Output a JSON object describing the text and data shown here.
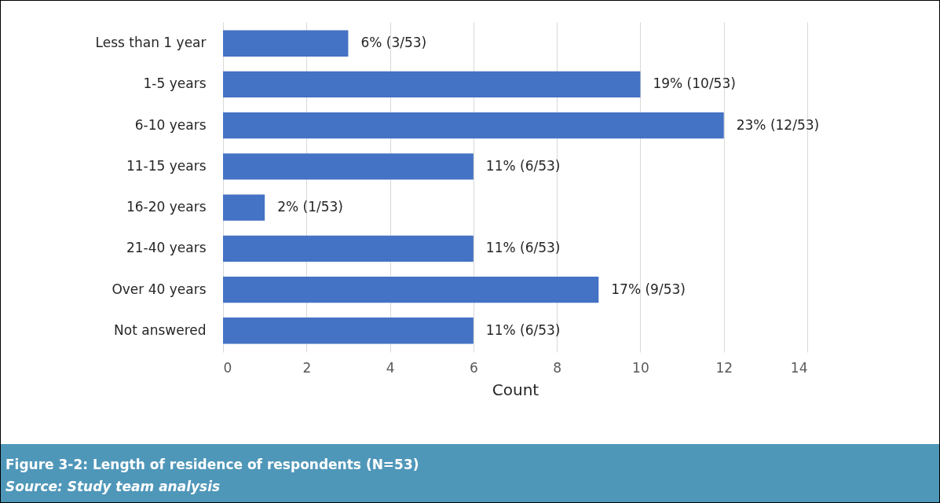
{
  "chart_data": {
    "type": "bar",
    "orientation": "horizontal",
    "title": "Figure 3-2: Length of residence of respondents (N=53)",
    "annotations": [
      "Source:  Study team analysis"
    ],
    "xlabel": "Count",
    "categories": [
      "Less than 1 year",
      "1-5 years",
      "6-10 years",
      "11-15 years",
      "16-20 years",
      "21-40 years",
      "Over 40 years",
      "Not answered"
    ],
    "values": [
      3,
      10,
      12,
      6,
      1,
      6,
      9,
      6
    ],
    "value_labels": [
      "6% (3/53)",
      "19% (10/53)",
      "23% (12/53)",
      "11% (6/53)",
      "2% (1/53)",
      "11% (6/53)",
      "17% (9/53)",
      "11% (6/53)"
    ],
    "color": "#4472c4",
    "xlim": [
      0,
      14
    ],
    "xticks": [
      0,
      2,
      4,
      6,
      8,
      10,
      12,
      14
    ],
    "grid": "x"
  }
}
